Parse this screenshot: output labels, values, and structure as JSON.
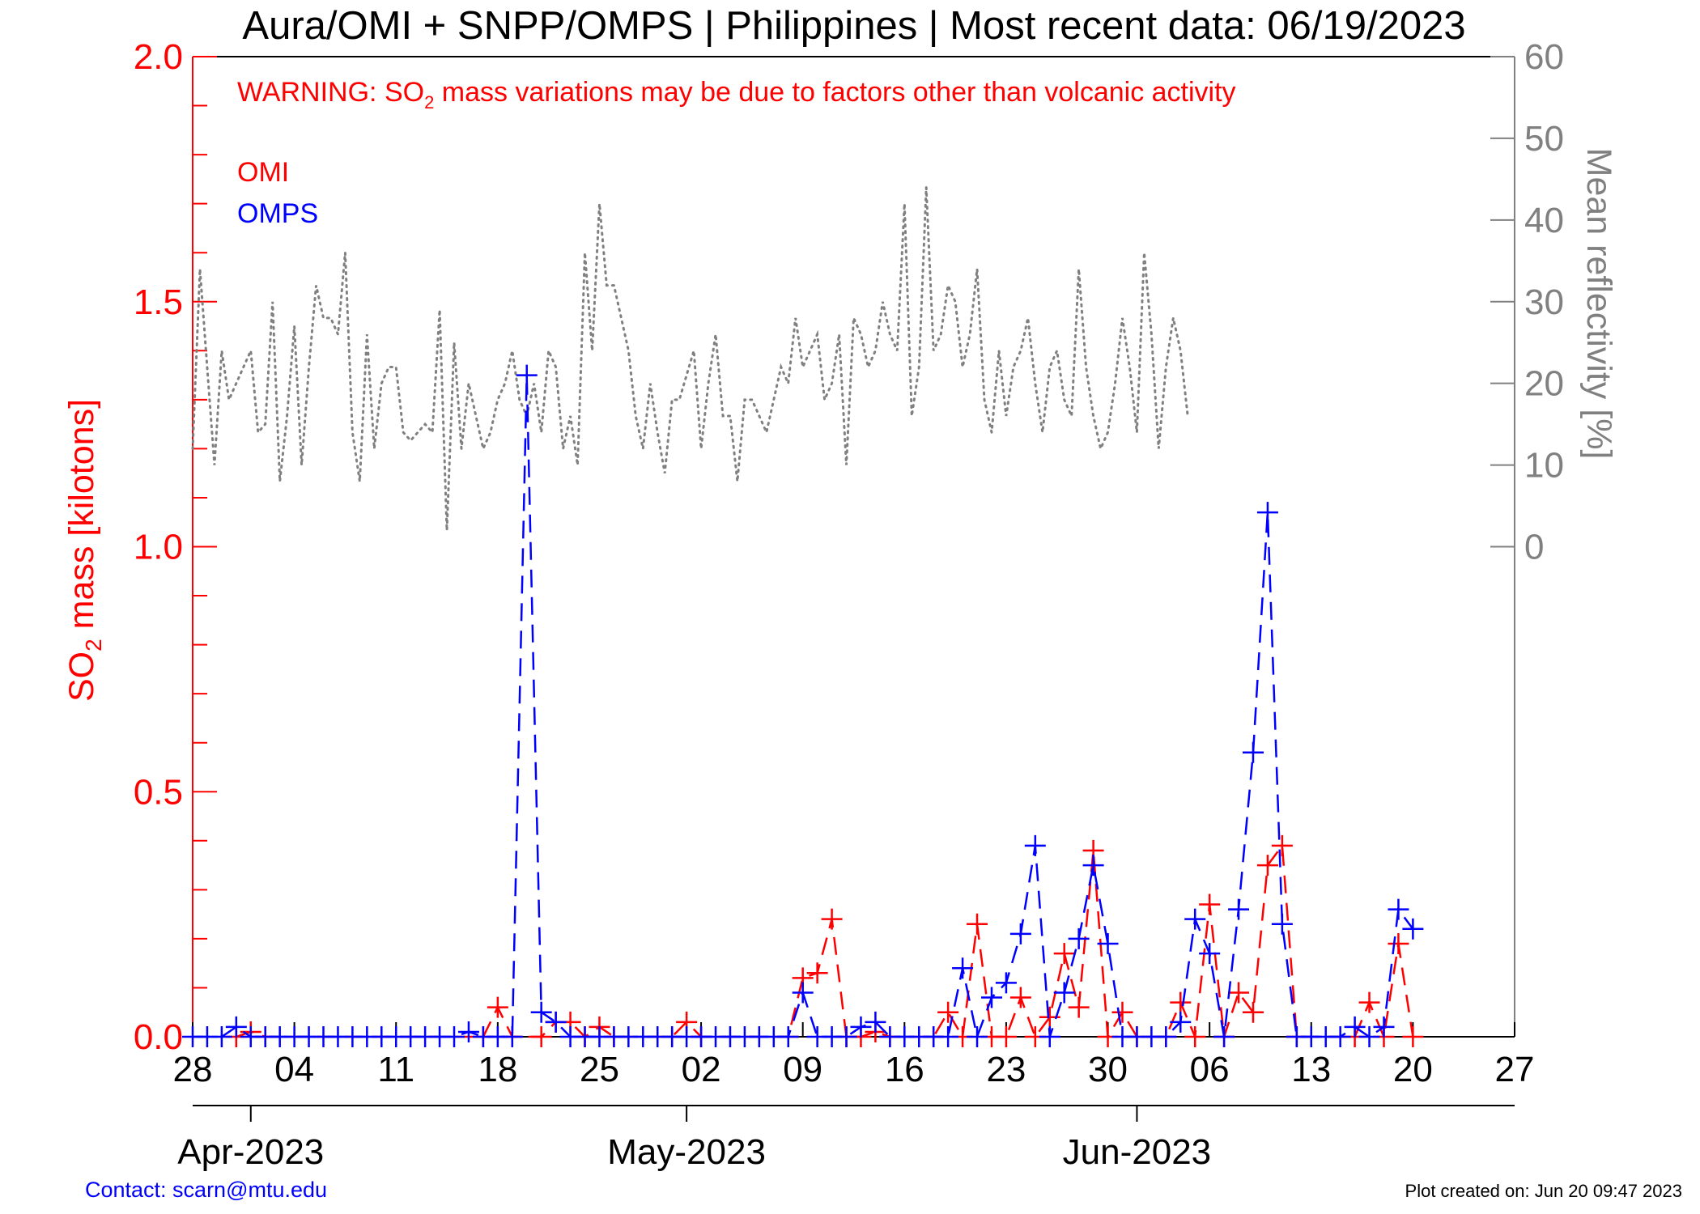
{
  "chart_data": {
    "type": "line",
    "title": "Aura/OMI + SNPP/OMPS | Philippines | Most recent data: 06/19/2023",
    "warning": {
      "prefix": "WARNING: SO",
      "sub": "2",
      "suffix": " mass variations may be due to factors other than volcanic activity"
    },
    "ylabel": {
      "prefix": "SO",
      "sub": "2",
      "suffix": " mass [kilotons]"
    },
    "y2label": "Mean reflectivity [%]",
    "ylim": [
      0.0,
      2.0
    ],
    "yticks": [
      "0.0",
      "0.5",
      "1.0",
      "1.5",
      "2.0"
    ],
    "y2_range": [
      0,
      60
    ],
    "y2ticks": [
      "0",
      "10",
      "20",
      "30",
      "40",
      "50",
      "60"
    ],
    "xlim": [
      "2023-03-28",
      "2023-06-27"
    ],
    "xticks": [
      "28",
      "04",
      "11",
      "18",
      "25",
      "02",
      "09",
      "16",
      "23",
      "30",
      "06",
      "13",
      "20",
      "27"
    ],
    "months": [
      {
        "label": "Apr-2023",
        "date": "2023-04-01"
      },
      {
        "label": "May-2023",
        "date": "2023-05-01"
      },
      {
        "label": "Jun-2023",
        "date": "2023-06-01"
      }
    ],
    "legend": {
      "placement": "top-left",
      "entries": [
        "OMI",
        "OMPS"
      ]
    },
    "series": [
      {
        "name": "OMI",
        "color": "#ff0000",
        "line": "dashed",
        "marker": "+",
        "points": [
          [
            "2023-03-31",
            0.0
          ],
          [
            "2023-04-01",
            0.01
          ],
          [
            "2023-04-02",
            0.0
          ],
          [
            "2023-04-17",
            0.0
          ],
          [
            "2023-04-18",
            0.06
          ],
          [
            "2023-04-19",
            0.0
          ],
          [
            "2023-04-21",
            0.0
          ],
          [
            "2023-04-22",
            0.03
          ],
          [
            "2023-04-23",
            0.03
          ],
          [
            "2023-04-24",
            0.0
          ],
          [
            "2023-04-25",
            0.02
          ],
          [
            "2023-04-26",
            0.0
          ],
          [
            "2023-04-30",
            0.0
          ],
          [
            "2023-05-01",
            0.03
          ],
          [
            "2023-05-02",
            0.0
          ],
          [
            "2023-05-08",
            0.0
          ],
          [
            "2023-05-09",
            0.12
          ],
          [
            "2023-05-10",
            0.13
          ],
          [
            "2023-05-11",
            0.24
          ],
          [
            "2023-05-12",
            0.0
          ],
          [
            "2023-05-13",
            0.0
          ],
          [
            "2023-05-14",
            0.01
          ],
          [
            "2023-05-15",
            0.0
          ],
          [
            "2023-05-18",
            0.0
          ],
          [
            "2023-05-19",
            0.05
          ],
          [
            "2023-05-20",
            0.0
          ],
          [
            "2023-05-21",
            0.23
          ],
          [
            "2023-05-22",
            0.0
          ],
          [
            "2023-05-23",
            0.0
          ],
          [
            "2023-05-24",
            0.08
          ],
          [
            "2023-05-25",
            0.0
          ],
          [
            "2023-05-26",
            0.04
          ],
          [
            "2023-05-27",
            0.17
          ],
          [
            "2023-05-28",
            0.06
          ],
          [
            "2023-05-29",
            0.38
          ],
          [
            "2023-05-30",
            0.0
          ],
          [
            "2023-05-31",
            0.05
          ],
          [
            "2023-06-01",
            0.0
          ],
          [
            "2023-06-03",
            0.0
          ],
          [
            "2023-06-04",
            0.07
          ],
          [
            "2023-06-05",
            0.0
          ],
          [
            "2023-06-06",
            0.27
          ],
          [
            "2023-06-07",
            0.0
          ],
          [
            "2023-06-08",
            0.09
          ],
          [
            "2023-06-09",
            0.05
          ],
          [
            "2023-06-10",
            0.35
          ],
          [
            "2023-06-11",
            0.39
          ],
          [
            "2023-06-12",
            0.0
          ],
          [
            "2023-06-16",
            0.0
          ],
          [
            "2023-06-17",
            0.07
          ],
          [
            "2023-06-18",
            0.0
          ],
          [
            "2023-06-19",
            0.19
          ],
          [
            "2023-06-20",
            0.0
          ]
        ]
      },
      {
        "name": "OMPS",
        "color": "#0000ff",
        "line": "dashed",
        "marker": "+",
        "points": [
          [
            "2023-03-28",
            0.0
          ],
          [
            "2023-03-29",
            0.0
          ],
          [
            "2023-03-30",
            0.0
          ],
          [
            "2023-03-31",
            0.02
          ],
          [
            "2023-04-01",
            0.0
          ],
          [
            "2023-04-02",
            0.0
          ],
          [
            "2023-04-03",
            0.0
          ],
          [
            "2023-04-04",
            0.0
          ],
          [
            "2023-04-05",
            0.0
          ],
          [
            "2023-04-06",
            0.0
          ],
          [
            "2023-04-07",
            0.0
          ],
          [
            "2023-04-08",
            0.0
          ],
          [
            "2023-04-09",
            0.0
          ],
          [
            "2023-04-10",
            0.0
          ],
          [
            "2023-04-11",
            0.0
          ],
          [
            "2023-04-12",
            0.0
          ],
          [
            "2023-04-13",
            0.0
          ],
          [
            "2023-04-14",
            0.0
          ],
          [
            "2023-04-15",
            0.0
          ],
          [
            "2023-04-16",
            0.01
          ],
          [
            "2023-04-17",
            0.0
          ],
          [
            "2023-04-18",
            0.0
          ],
          [
            "2023-04-19",
            0.0
          ],
          [
            "2023-04-20",
            1.35
          ],
          [
            "2023-04-21",
            0.05
          ],
          [
            "2023-04-22",
            0.03
          ],
          [
            "2023-04-23",
            0.0
          ],
          [
            "2023-04-24",
            0.0
          ],
          [
            "2023-04-25",
            0.0
          ],
          [
            "2023-04-26",
            0.0
          ],
          [
            "2023-04-27",
            0.0
          ],
          [
            "2023-04-28",
            0.0
          ],
          [
            "2023-04-29",
            0.0
          ],
          [
            "2023-04-30",
            0.0
          ],
          [
            "2023-05-01",
            0.0
          ],
          [
            "2023-05-02",
            0.0
          ],
          [
            "2023-05-03",
            0.0
          ],
          [
            "2023-05-04",
            0.0
          ],
          [
            "2023-05-05",
            0.0
          ],
          [
            "2023-05-06",
            0.0
          ],
          [
            "2023-05-07",
            0.0
          ],
          [
            "2023-05-08",
            0.0
          ],
          [
            "2023-05-09",
            0.09
          ],
          [
            "2023-05-10",
            0.0
          ],
          [
            "2023-05-11",
            0.0
          ],
          [
            "2023-05-12",
            0.0
          ],
          [
            "2023-05-13",
            0.02
          ],
          [
            "2023-05-14",
            0.03
          ],
          [
            "2023-05-15",
            0.0
          ],
          [
            "2023-05-16",
            0.0
          ],
          [
            "2023-05-17",
            0.0
          ],
          [
            "2023-05-18",
            0.0
          ],
          [
            "2023-05-19",
            0.0
          ],
          [
            "2023-05-20",
            0.14
          ],
          [
            "2023-05-21",
            0.0
          ],
          [
            "2023-05-22",
            0.08
          ],
          [
            "2023-05-23",
            0.11
          ],
          [
            "2023-05-24",
            0.21
          ],
          [
            "2023-05-25",
            0.39
          ],
          [
            "2023-05-26",
            0.0
          ],
          [
            "2023-05-27",
            0.09
          ],
          [
            "2023-05-28",
            0.2
          ],
          [
            "2023-05-29",
            0.35
          ],
          [
            "2023-05-30",
            0.19
          ],
          [
            "2023-05-31",
            0.0
          ],
          [
            "2023-06-01",
            0.0
          ],
          [
            "2023-06-02",
            0.0
          ],
          [
            "2023-06-03",
            0.0
          ],
          [
            "2023-06-04",
            0.03
          ],
          [
            "2023-06-05",
            0.24
          ],
          [
            "2023-06-06",
            0.17
          ],
          [
            "2023-06-07",
            0.0
          ],
          [
            "2023-06-08",
            0.26
          ],
          [
            "2023-06-09",
            0.58
          ],
          [
            "2023-06-10",
            1.07
          ],
          [
            "2023-06-11",
            0.23
          ],
          [
            "2023-06-12",
            0.0
          ],
          [
            "2023-06-13",
            0.0
          ],
          [
            "2023-06-14",
            0.0
          ],
          [
            "2023-06-15",
            0.0
          ],
          [
            "2023-06-16",
            0.02
          ],
          [
            "2023-06-17",
            0.0
          ],
          [
            "2023-06-18",
            0.02
          ],
          [
            "2023-06-19",
            0.26
          ],
          [
            "2023-06-20",
            0.22
          ]
        ]
      }
    ],
    "reflectivity": {
      "color": "#808080",
      "line": "dotted",
      "start_date": "2023-03-28",
      "step_days": 0.5,
      "values": [
        12,
        34,
        22,
        10,
        24,
        18,
        20,
        22,
        24,
        14,
        15,
        30,
        8,
        16,
        27,
        10,
        22,
        32,
        28,
        28,
        26,
        36,
        14,
        8,
        26,
        12,
        20,
        22,
        22,
        14,
        13,
        14,
        15,
        14,
        29,
        2,
        25,
        12,
        20,
        16,
        12,
        14,
        18,
        20,
        24,
        18,
        16,
        20,
        14,
        24,
        22,
        12,
        16,
        10,
        36,
        24,
        42,
        32,
        32,
        28,
        24,
        16,
        12,
        20,
        14,
        9,
        18,
        18,
        21,
        24,
        12,
        20,
        26,
        16,
        16,
        8,
        18,
        18,
        16,
        14,
        18,
        22,
        20,
        28,
        22,
        24,
        26,
        18,
        20,
        26,
        10,
        28,
        26,
        22,
        24,
        30,
        26,
        24,
        42,
        16,
        22,
        44,
        24,
        26,
        32,
        30,
        22,
        26,
        34,
        18,
        14,
        24,
        16,
        22,
        24,
        28,
        20,
        14,
        22,
        24,
        18,
        16,
        34,
        22,
        16,
        12,
        14,
        20,
        28,
        22,
        14,
        36,
        26,
        12,
        22,
        28,
        24,
        16
      ]
    }
  },
  "footer": {
    "contact": "Contact: scarn@mtu.edu",
    "created": "Plot created on: Jun 20 09:47 2023"
  }
}
